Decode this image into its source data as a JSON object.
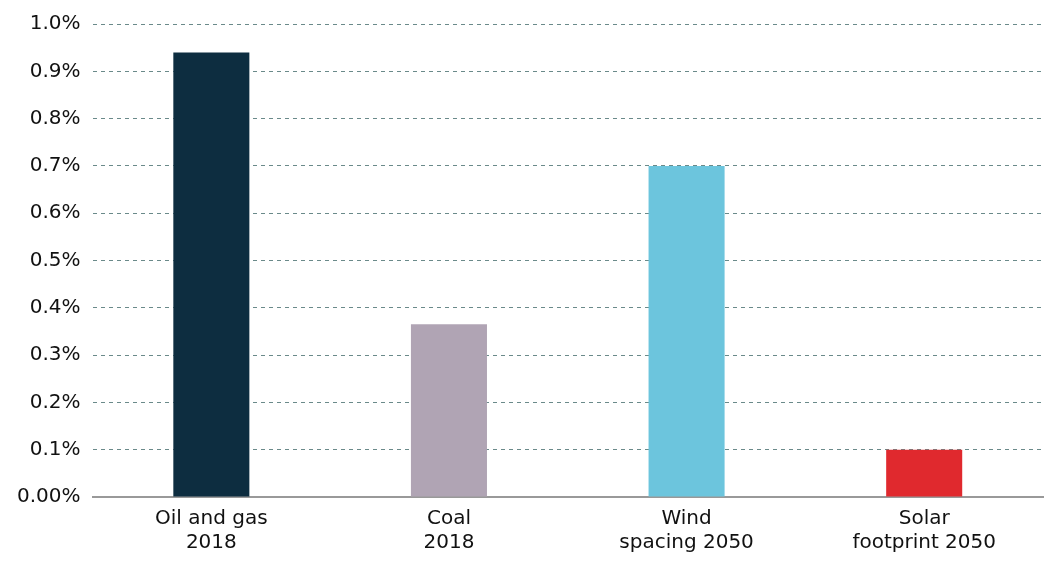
{
  "chart_data": {
    "type": "bar",
    "categories": [
      "Oil and gas\n2018",
      "Coal\n2018",
      "Wind\nspacing 2050",
      "Solar\nfootprint 2050"
    ],
    "values": [
      0.94,
      0.365,
      0.7,
      0.1
    ],
    "colors": [
      "#0d2d40",
      "#b0a4b4",
      "#6cc5dd",
      "#e0292e"
    ],
    "ylim": [
      0,
      1.0
    ],
    "yticks": [
      {
        "value": 0,
        "label": "0.00%"
      },
      {
        "value": 0.1,
        "label": "0.1%"
      },
      {
        "value": 0.2,
        "label": "0.2%"
      },
      {
        "value": 0.3,
        "label": "0.3%"
      },
      {
        "value": 0.4,
        "label": "0.4%"
      },
      {
        "value": 0.5,
        "label": "0.5%"
      },
      {
        "value": 0.6,
        "label": "0.6%"
      },
      {
        "value": 0.7,
        "label": "0.7%"
      },
      {
        "value": 0.8,
        "label": "0.8%"
      },
      {
        "value": 0.9,
        "label": "0.9%"
      },
      {
        "value": 1.0,
        "label": "1.0%"
      }
    ],
    "grid": "y"
  }
}
